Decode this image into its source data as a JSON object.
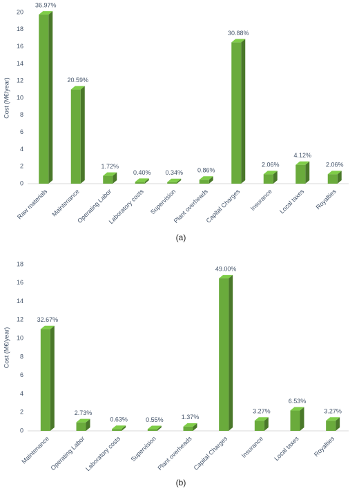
{
  "chart_data": [
    {
      "type": "bar",
      "y_label": "Cost (M€/year)",
      "caption": "(a)",
      "categories": [
        "Raw materials",
        "Maintenance",
        "Operating Labor",
        "Laboratory costs",
        "Supervision",
        "Plant overheads",
        "Capital Charges",
        "Insurance",
        "Local taxes",
        "Royalties"
      ],
      "values": [
        19.75,
        11.0,
        0.92,
        0.21,
        0.18,
        0.46,
        16.5,
        1.1,
        2.2,
        1.1
      ],
      "share_labels": [
        "36.97%",
        "20.59%",
        "1.72%",
        "0.40%",
        "0.34%",
        "0.86%",
        "30.88%",
        "2.06%",
        "4.12%",
        "2.06%"
      ],
      "color": "#6aab3c",
      "ylim": [
        0,
        20
      ],
      "yticks": [
        0,
        2,
        4,
        6,
        8,
        10,
        12,
        14,
        16,
        18,
        20
      ],
      "grid": false
    },
    {
      "type": "bar",
      "y_label": "Cost (M€/year)",
      "caption": "(b)",
      "categories": [
        "Maintenance",
        "Operating Labor",
        "Laboratory costs",
        "Supervision",
        "Plant overheads",
        "Capital Charges",
        "Insurance",
        "Local taxes",
        "Royalties"
      ],
      "values": [
        11.0,
        0.92,
        0.21,
        0.185,
        0.46,
        16.5,
        1.1,
        2.2,
        1.1
      ],
      "share_labels": [
        "32.67%",
        "2.73%",
        "0.63%",
        "0.55%",
        "1.37%",
        "49.00%",
        "3.27%",
        "6.53%",
        "3.27%"
      ],
      "color": "#6aab3c",
      "ylim": [
        0,
        18
      ],
      "yticks": [
        0,
        2,
        4,
        6,
        8,
        10,
        12,
        14,
        16,
        18
      ],
      "grid": false
    }
  ]
}
